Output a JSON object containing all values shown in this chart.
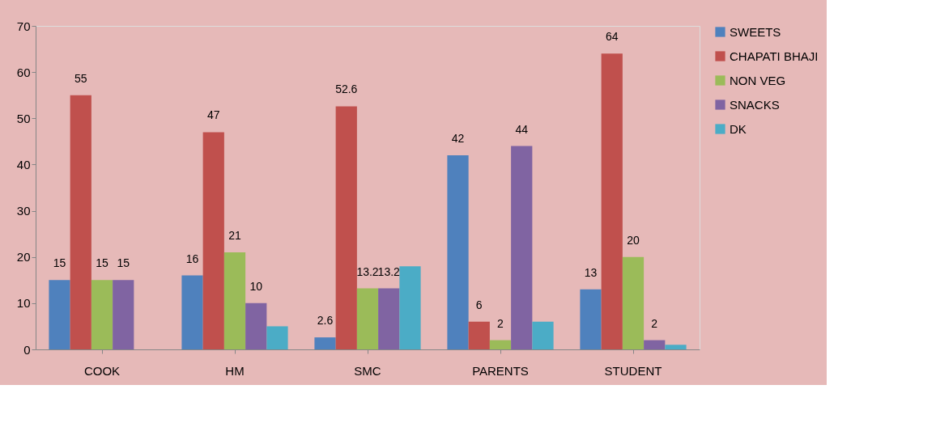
{
  "chart_data": {
    "type": "bar",
    "categories": [
      "COOK",
      "HM",
      "SMC",
      "PARENTS",
      "STUDENT"
    ],
    "series": [
      {
        "name": "SWEETS",
        "color": "#4f81bd",
        "values": [
          15,
          16,
          2.6,
          42,
          13
        ],
        "value_labels": [
          "15",
          "16",
          "2.6",
          "42",
          "13"
        ]
      },
      {
        "name": "CHAPATI BHAJI",
        "color": "#c0504d",
        "values": [
          55,
          47,
          52.6,
          6,
          64
        ],
        "value_labels": [
          "55",
          "47",
          "52.6",
          "6",
          "64"
        ]
      },
      {
        "name": "NON VEG",
        "color": "#9bbb59",
        "values": [
          15,
          21,
          13.2,
          2,
          20
        ],
        "value_labels": [
          "15",
          "21",
          "13.2",
          "2",
          "20"
        ]
      },
      {
        "name": "SNACKS",
        "color": "#8064a2",
        "values": [
          15,
          10,
          13.2,
          44,
          2
        ],
        "value_labels": [
          "15",
          "10",
          "13.2",
          "44",
          "2"
        ]
      },
      {
        "name": "DK",
        "color": "#4bacc6",
        "values": [
          null,
          5,
          18,
          6,
          1
        ],
        "value_labels": [
          null,
          null,
          null,
          null,
          null
        ]
      }
    ],
    "ylim": [
      0,
      70
    ],
    "yticks": [
      0,
      10,
      20,
      30,
      40,
      50,
      60,
      70
    ],
    "grid": false,
    "legend": "right"
  }
}
